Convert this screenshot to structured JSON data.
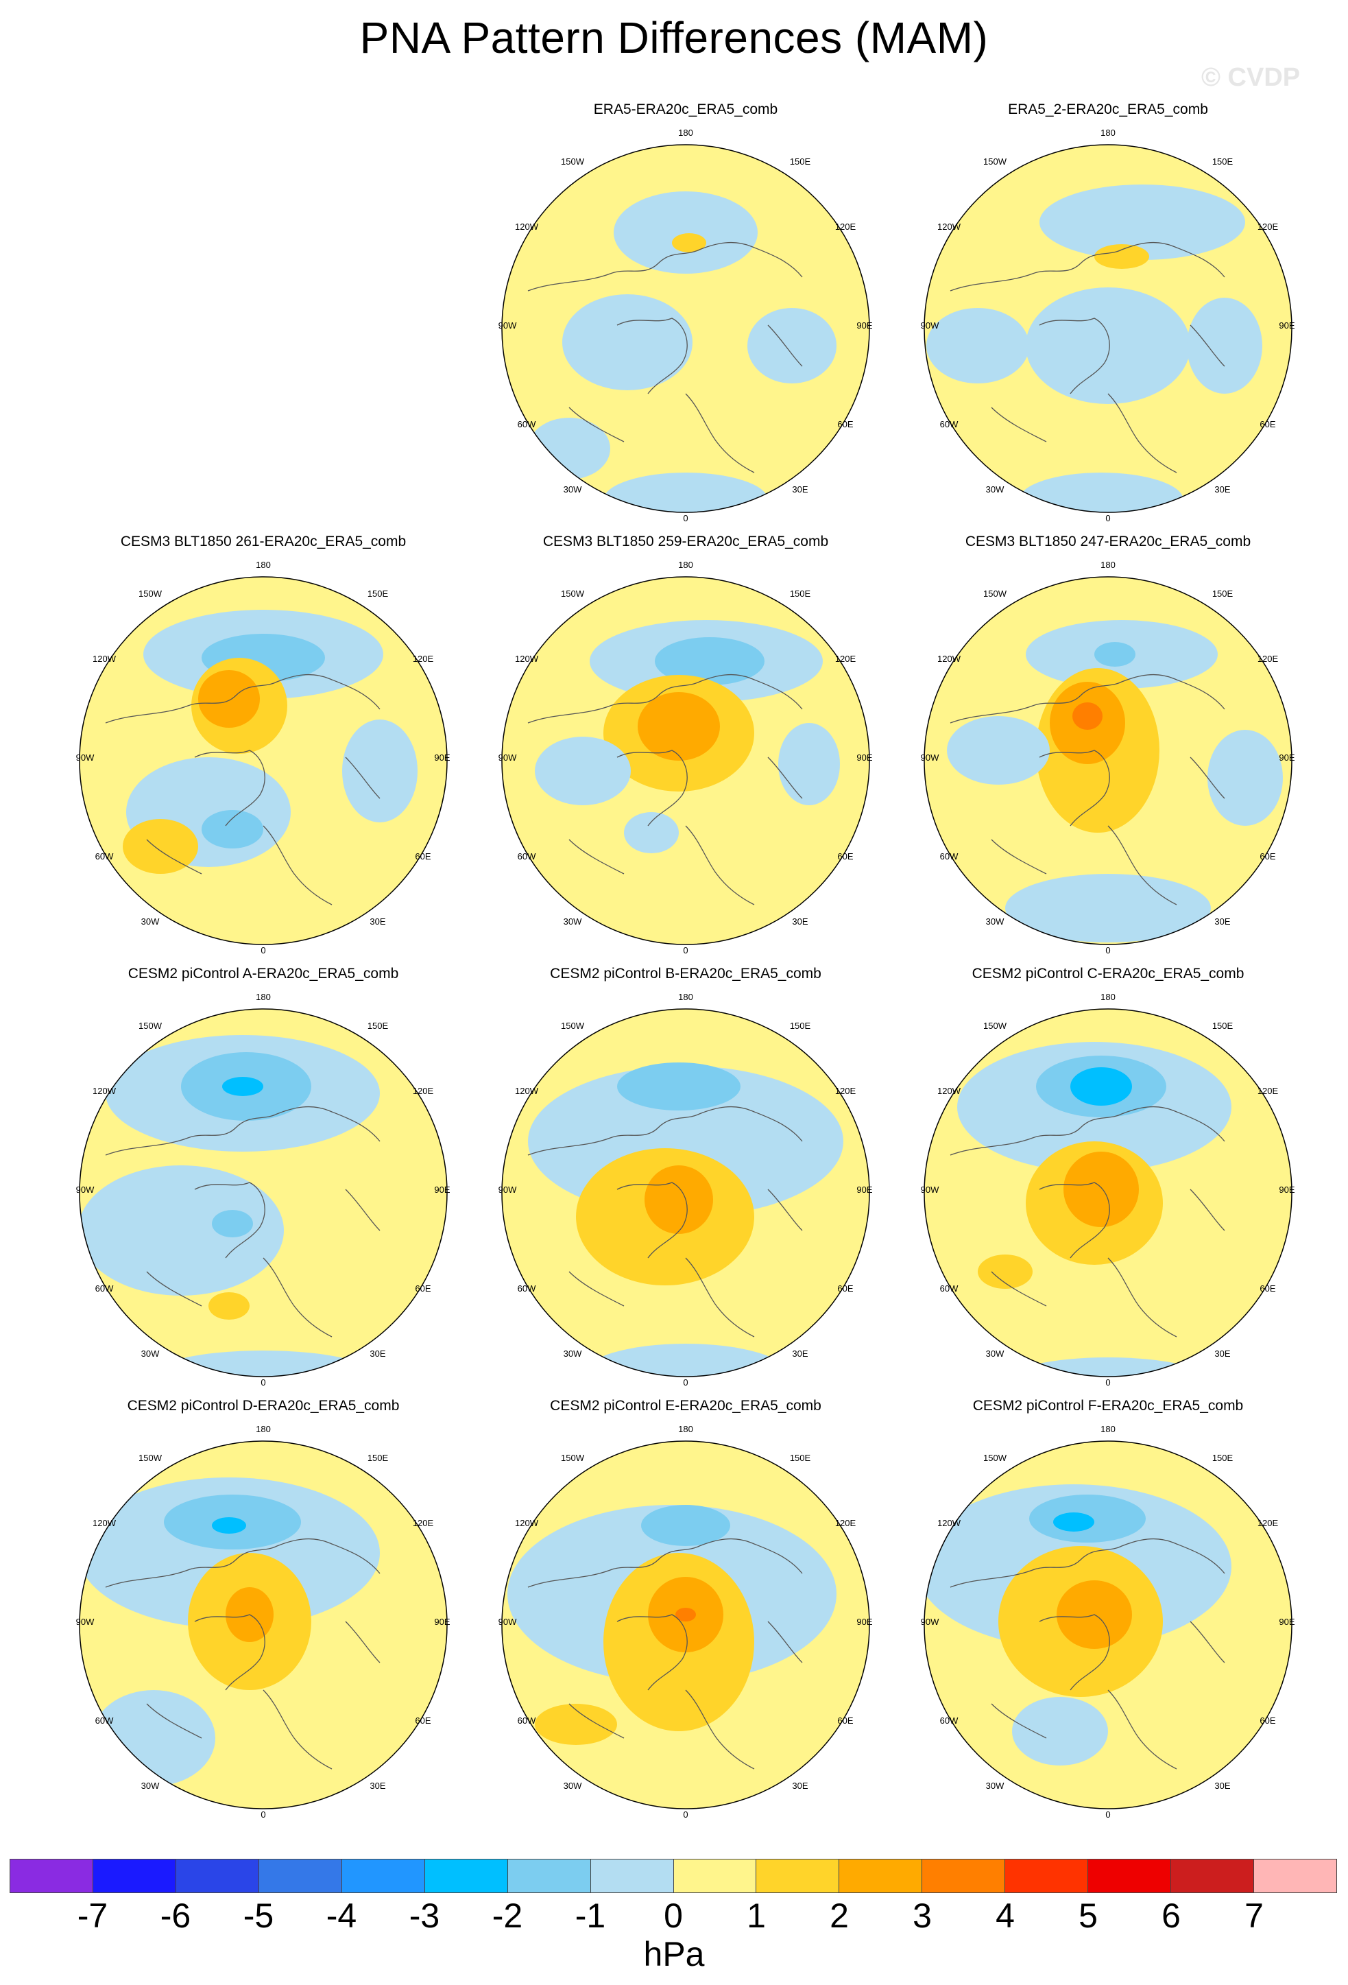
{
  "title": "PNA Pattern Differences (MAM)",
  "watermark": "© CVDP",
  "longitude_labels": {
    "top": "180",
    "bottom": "0",
    "upper_left": "150W",
    "upper_right": "150E",
    "left_upper": "120W",
    "right_upper": "120E",
    "left": "90W",
    "right": "90E",
    "left_lower": "60W",
    "right_lower": "60E",
    "lower_left": "30W",
    "lower_right": "30E"
  },
  "panels": [
    {
      "title": "ERA5-ERA20c_ERA5_comb"
    },
    {
      "title": "ERA5_2-ERA20c_ERA5_comb"
    },
    {
      "title": "CESM3 BLT1850 261-ERA20c_ERA5_comb"
    },
    {
      "title": "CESM3 BLT1850 259-ERA20c_ERA5_comb"
    },
    {
      "title": "CESM3 BLT1850 247-ERA20c_ERA5_comb"
    },
    {
      "title": "CESM2 piControl A-ERA20c_ERA5_comb"
    },
    {
      "title": "CESM2 piControl B-ERA20c_ERA5_comb"
    },
    {
      "title": "CESM2 piControl C-ERA20c_ERA5_comb"
    },
    {
      "title": "CESM2 piControl D-ERA20c_ERA5_comb"
    },
    {
      "title": "CESM2 piControl E-ERA20c_ERA5_comb"
    },
    {
      "title": "CESM2 piControl F-ERA20c_ERA5_comb"
    }
  ],
  "colorbar": {
    "units": "hPa",
    "ticks": [
      "-7",
      "-6",
      "-5",
      "-4",
      "-3",
      "-2",
      "-1",
      "0",
      "1",
      "2",
      "3",
      "4",
      "5",
      "6",
      "7"
    ],
    "colors": [
      "#8a2be2",
      "#1a1aff",
      "#2a45e8",
      "#3478e8",
      "#2196ff",
      "#00bfff",
      "#7ccdf0",
      "#b3ddf2",
      "#fff58c",
      "#ffd42a",
      "#ffaa00",
      "#ff7f00",
      "#ff3300",
      "#ee0000",
      "#cc1e1e",
      "#ffb6b6"
    ]
  },
  "map_colors": {
    "zero_to_one": "#fff58c",
    "minus_one_to_zero": "#b3ddf2",
    "one_to_two": "#ffd42a",
    "two_to_three": "#ffaa00",
    "three_to_four": "#ff7f00",
    "minus_two_to_minus_one": "#7ccdf0",
    "minus_three_to_minus_two": "#00bfff"
  }
}
